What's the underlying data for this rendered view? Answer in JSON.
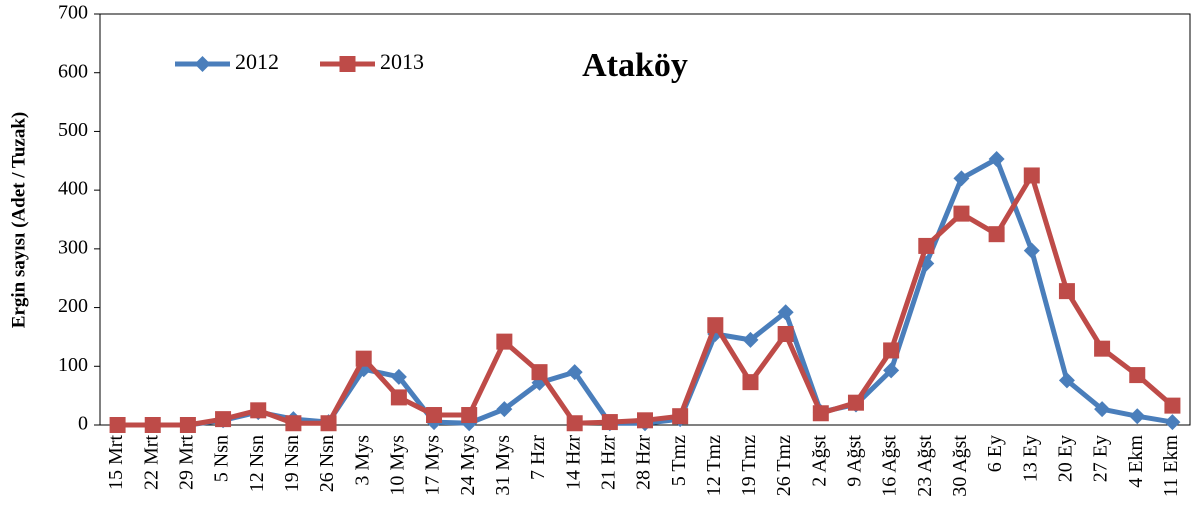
{
  "chart_data": {
    "type": "line",
    "title": "Ataköy",
    "y_label": "Ergin sayısı (Adet / Tuzak)",
    "categories": [
      "15 Mrt",
      "22 Mrt",
      "29 Mrt",
      "5 Nsn",
      "12 Nsn",
      "19 Nsn",
      "26 Nsn",
      "3 Mys",
      "10 Mys",
      "17 Mys",
      "24 Mys",
      "31 Mys",
      "7 Hzr",
      "14 Hzr",
      "21 Hzr",
      "28 Hzr",
      "5 Tmz",
      "12 Tmz",
      "19 Tmz",
      "26 Tmz",
      "2 Ağst",
      "9 Ağst",
      "16 Ağst",
      "23 Ağst",
      "30 Ağst",
      "6 Ey",
      "13 Ey",
      "20 Ey",
      "27 Ey",
      "4 Ekm",
      "11 Ekm"
    ],
    "series": [
      {
        "name": "2012",
        "color": "#4a7ebb",
        "marker": "diamond",
        "values": [
          0,
          0,
          0,
          8,
          22,
          10,
          5,
          95,
          82,
          5,
          3,
          27,
          72,
          90,
          3,
          3,
          10,
          155,
          145,
          192,
          22,
          35,
          93,
          275,
          420,
          453,
          297,
          76,
          27,
          15,
          5
        ]
      },
      {
        "name": "2013",
        "color": "#be4b48",
        "marker": "square",
        "values": [
          0,
          0,
          0,
          10,
          25,
          3,
          3,
          113,
          47,
          17,
          17,
          142,
          90,
          3,
          5,
          8,
          15,
          170,
          73,
          155,
          20,
          38,
          127,
          305,
          360,
          325,
          425,
          228,
          130,
          85,
          33
        ]
      }
    ],
    "ylim": [
      0,
      700
    ],
    "yticks": [
      0,
      100,
      200,
      300,
      400,
      500,
      600,
      700
    ],
    "legend": "upper left"
  }
}
